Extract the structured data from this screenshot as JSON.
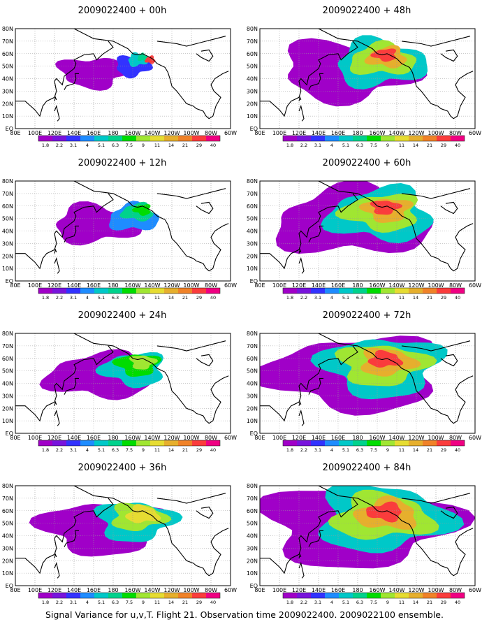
{
  "panels": [
    {
      "title": "2009022400 + 00h",
      "step": 0
    },
    {
      "title": "2009022400 + 48h",
      "step": 4
    },
    {
      "title": "2009022400 + 12h",
      "step": 1
    },
    {
      "title": "2009022400 + 60h",
      "step": 5
    },
    {
      "title": "2009022400 + 24h",
      "step": 2
    },
    {
      "title": "2009022400 + 72h",
      "step": 6
    },
    {
      "title": "2009022400 + 36h",
      "step": 3
    },
    {
      "title": "2009022400 + 84h",
      "step": 7
    }
  ],
  "lat_labels": [
    "80N",
    "70N",
    "60N",
    "50N",
    "40N",
    "30N",
    "20N",
    "10N",
    "EQ"
  ],
  "lon_labels": [
    "80E",
    "100E",
    "120E",
    "140E",
    "160E",
    "180",
    "160W",
    "140W",
    "120W",
    "100W",
    "80W",
    "60W"
  ],
  "colorbar": {
    "labels": [
      "1.8",
      "2.2",
      "3.1",
      "4",
      "5.1",
      "6.3",
      "7.5",
      "9",
      "11",
      "14",
      "21",
      "29",
      "40"
    ],
    "colors": [
      "#a000c8",
      "#7814dc",
      "#3232ff",
      "#1e8cff",
      "#00c8c8",
      "#00d28c",
      "#00dc00",
      "#a0e632",
      "#e6dc32",
      "#e6af2d",
      "#f08228",
      "#fa3c3c",
      "#f00082"
    ]
  },
  "caption": "Signal Variance for u,v,T. Flight 21. Observation time 2009022400. 2009022100 ensemble."
}
